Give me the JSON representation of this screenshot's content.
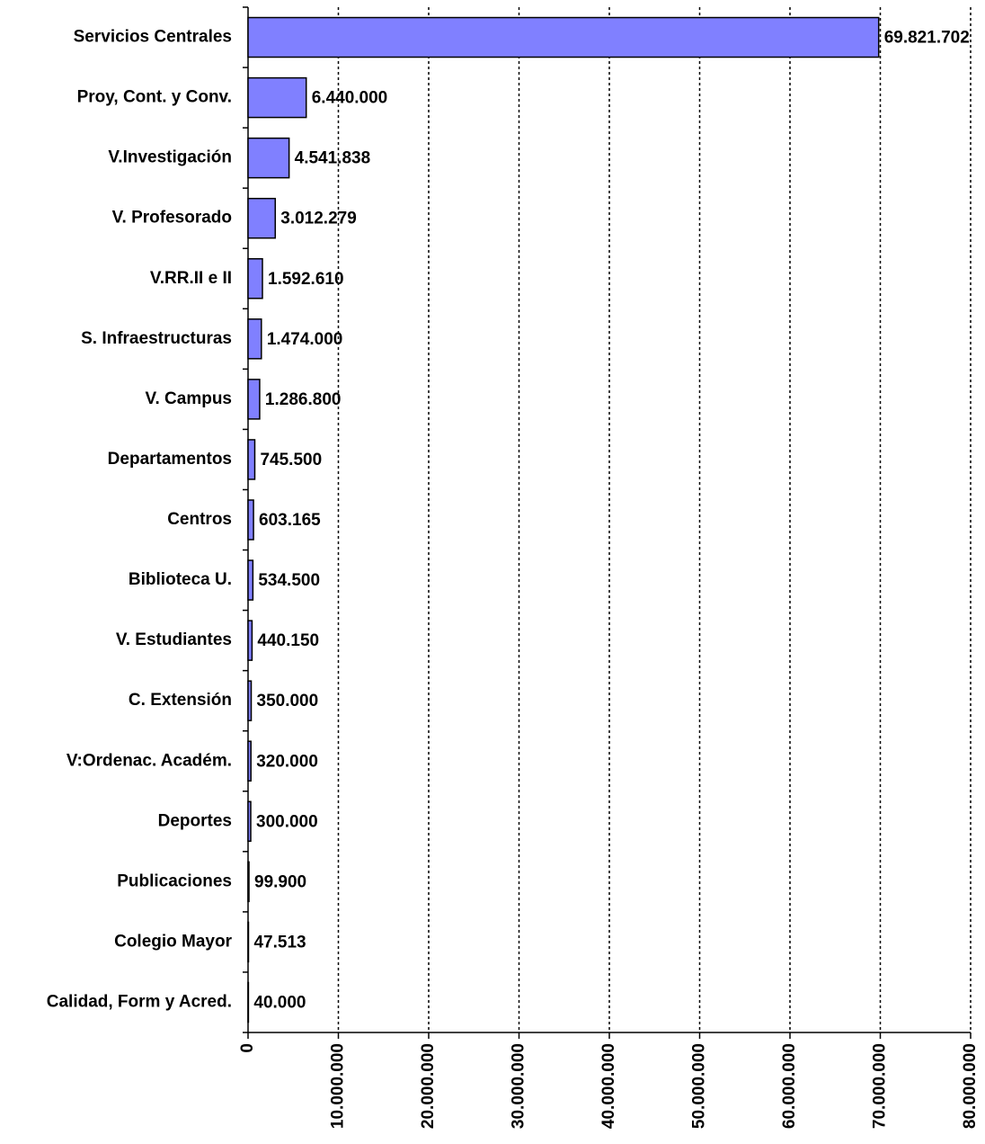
{
  "chart_data": {
    "type": "barh",
    "categories": [
      "Servicios Centrales",
      "Proy, Cont. y Conv.",
      "V.Investigación",
      "V. Profesorado",
      "V.RR.II e II",
      "S. Infraestructuras",
      "V. Campus",
      "Departamentos",
      "Centros",
      "Biblioteca U.",
      "V. Estudiantes",
      "C. Extensión",
      "V:Ordenac. Académ.",
      "Deportes",
      "Publicaciones",
      "Colegio Mayor",
      "Calidad, Form y  Acred."
    ],
    "values": [
      69821702,
      6440000,
      4541838,
      3012279,
      1592610,
      1474000,
      1286800,
      745500,
      603165,
      534500,
      440150,
      350000,
      320000,
      300000,
      99900,
      47513,
      40000
    ],
    "value_labels": [
      "69.821.702",
      "6.440.000",
      "4.541.838",
      "3.012.279",
      "1.592.610",
      "1.474.000",
      "1.286.800",
      "745.500",
      "603.165",
      "534.500",
      "440.150",
      "350.000",
      "320.000",
      "300.000",
      "99.900",
      "47.513",
      "40.000"
    ],
    "color": "#8080ff",
    "xlim": [
      0,
      80000000
    ],
    "xticks": [
      0,
      {
        "value": 10000000,
        "label": "10.000.000"
      },
      {
        "value": 20000000,
        "label": "20.000.000"
      },
      {
        "value": 30000000,
        "label": "30.000.000"
      },
      {
        "value": 40000000,
        "label": "40.000.000"
      },
      {
        "value": 50000000,
        "label": "50.000.000"
      },
      {
        "value": 60000000,
        "label": "60.000.000"
      },
      {
        "value": 70000000,
        "label": "70.000.000"
      },
      {
        "value": 80000000,
        "label": "80.000.000"
      }
    ],
    "grid": true
  }
}
